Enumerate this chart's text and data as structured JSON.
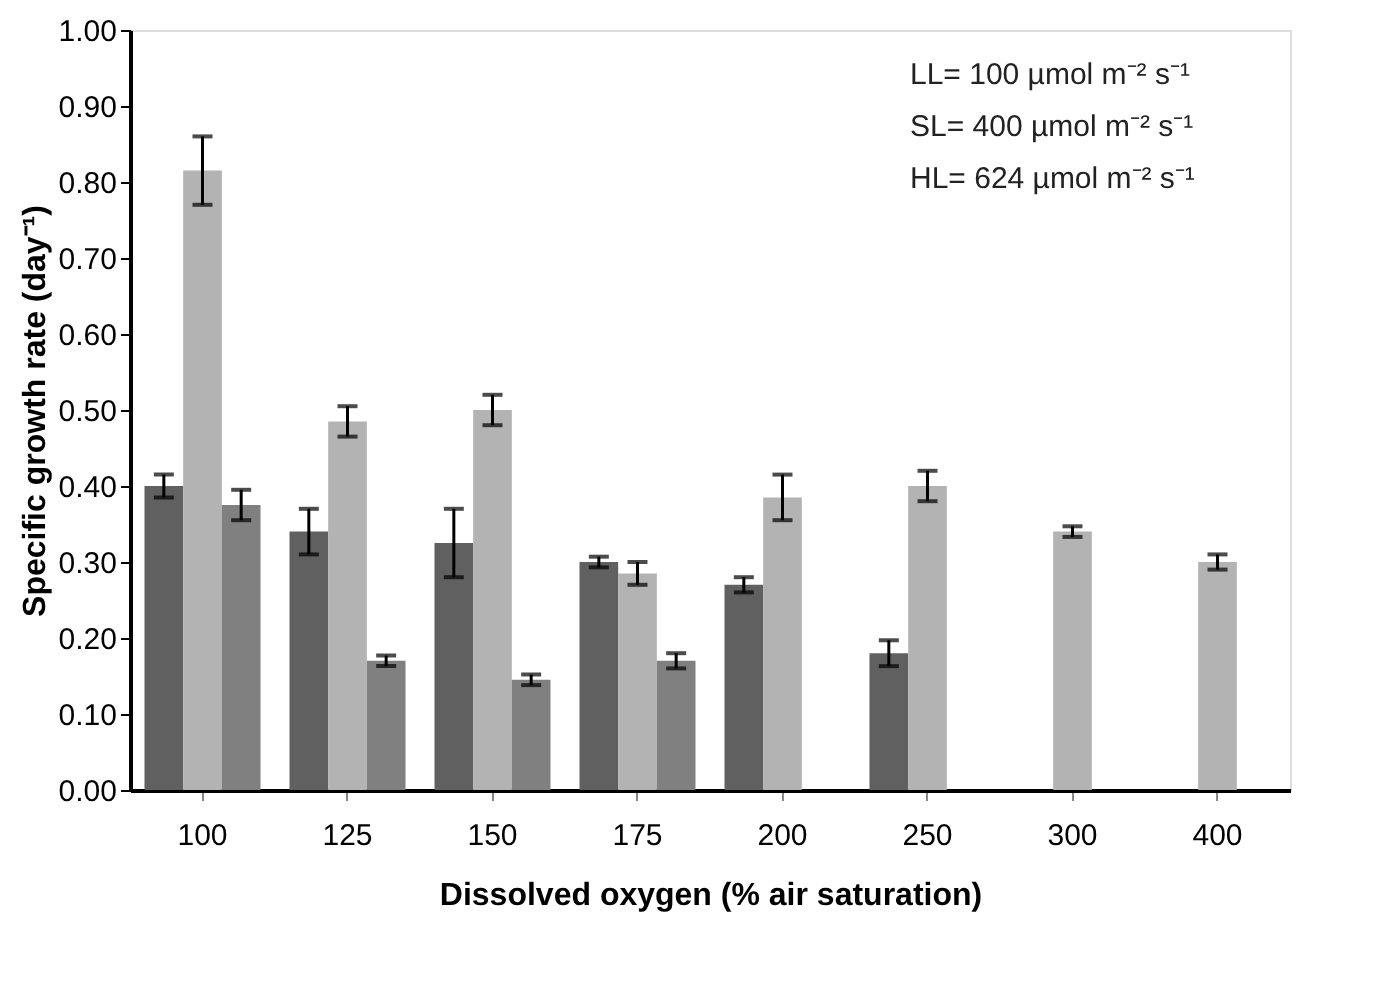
{
  "chart_data": {
    "type": "bar",
    "xlabel": "Dissolved oxygen (% air saturation)",
    "ylabel": "Specific growth rate (day⁻¹)",
    "categories": [
      "100",
      "125",
      "150",
      "175",
      "200",
      "250",
      "300",
      "400"
    ],
    "series": [
      {
        "color": "#606060",
        "values": [
          0.4,
          0.34,
          0.325,
          0.3,
          0.27,
          0.18,
          null,
          null
        ],
        "errors": [
          0.015,
          0.03,
          0.045,
          0.007,
          0.01,
          0.017,
          null,
          null
        ]
      },
      {
        "color": "#b3b3b3",
        "values": [
          0.815,
          0.485,
          0.5,
          0.285,
          0.385,
          0.4,
          0.34,
          0.3
        ],
        "errors": [
          0.045,
          0.02,
          0.02,
          0.015,
          0.03,
          0.02,
          0.007,
          0.01
        ]
      },
      {
        "color": "#808080",
        "values": [
          0.375,
          0.17,
          0.145,
          0.17,
          null,
          null,
          null,
          null
        ],
        "errors": [
          0.02,
          0.007,
          0.007,
          0.01,
          null,
          null,
          null,
          null
        ]
      }
    ],
    "ylim": [
      0,
      1
    ],
    "yticks": [
      {
        "value": 0,
        "label": "0.00"
      },
      {
        "value": 0.1,
        "label": "0.10"
      },
      {
        "value": 0.2,
        "label": "0.20"
      },
      {
        "value": 0.3,
        "label": "0.30"
      },
      {
        "value": 0.4,
        "label": "0.40"
      },
      {
        "value": 0.5,
        "label": "0.50"
      },
      {
        "value": 0.6,
        "label": "0.60"
      },
      {
        "value": 0.7,
        "label": "0.70"
      },
      {
        "value": 0.8,
        "label": "0.80"
      },
      {
        "value": 0.9,
        "label": "0.90"
      },
      {
        "value": 1,
        "label": "1.00"
      }
    ],
    "annotations": [
      "LL= 100 µmol m⁻² s⁻¹",
      "SL= 400 µmol m⁻² s⁻¹",
      "HL= 624 µmol m⁻² s⁻¹"
    ],
    "grid": false
  }
}
